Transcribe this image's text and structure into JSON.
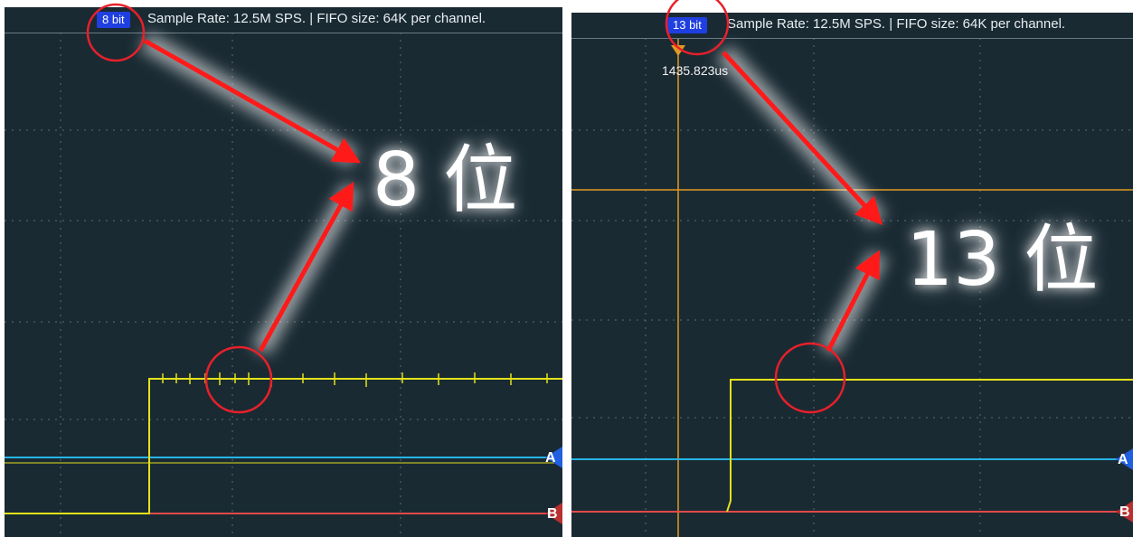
{
  "left_panel": {
    "bit_badge": "8 bit",
    "header_text": "Sample Rate: 12.5M SPS. | FIFO size: 64K per channel.",
    "annotation_label": "8 位",
    "channel_a": "A",
    "channel_b": "B"
  },
  "right_panel": {
    "bit_badge": "13 bit",
    "header_text": "Sample Rate: 12.5M SPS. | FIFO size: 64K per channel.",
    "cursor_readout": "1435.823us",
    "annotation_label": "13 位",
    "channel_a": "A",
    "channel_b": "B"
  },
  "colors": {
    "background": "#1a2a33",
    "grid": "#5c6c76",
    "trace_yellow": "#e4e21a",
    "trace_cyan": "#25b4e6",
    "trace_red": "#e14a4a",
    "cursor_orange": "#e09a20",
    "annotation_red": "#ff1a1a",
    "badge_blue": "#1f3fe0"
  }
}
